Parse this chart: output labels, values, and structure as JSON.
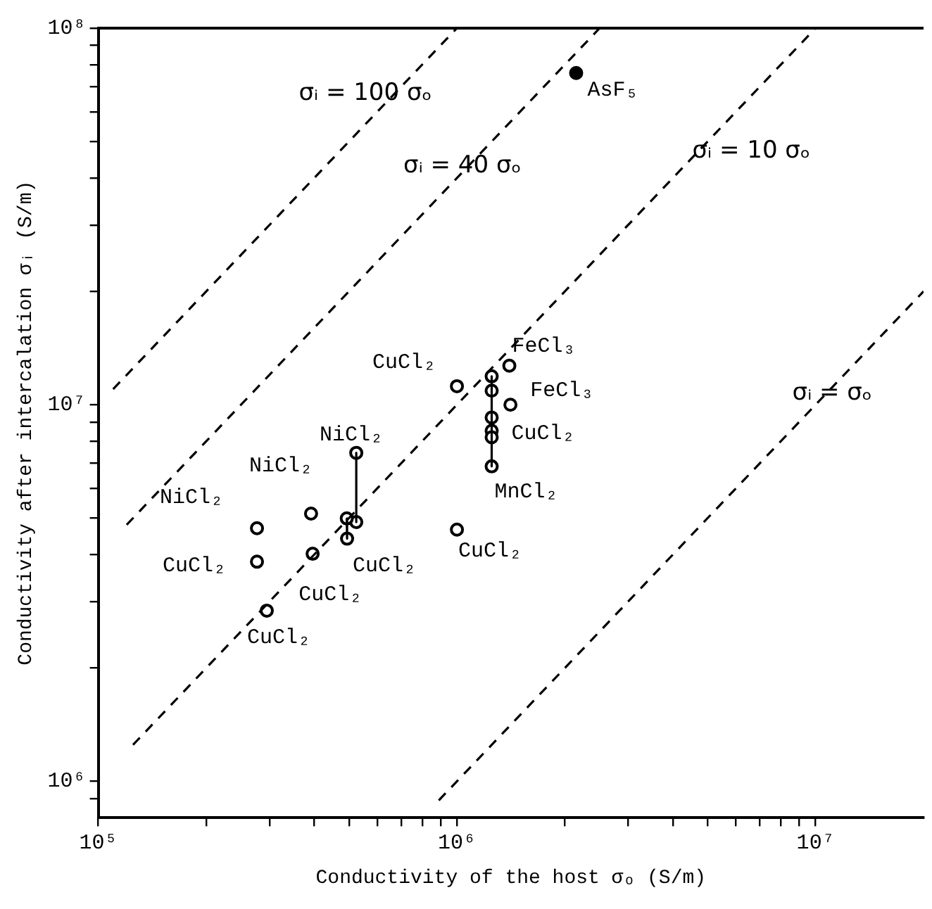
{
  "chart_data": {
    "type": "scatter",
    "xlabel": "Conductivity of the host σₒ (S/m)",
    "ylabel": "Conductivity after intercalation σᵢ (S/m)",
    "log": "xy",
    "grid": false,
    "marker": "circle",
    "xlim": [
      100000,
      20000000
    ],
    "ylim": [
      800000,
      100000000
    ],
    "xticks": [
      {
        "value": 100000,
        "label": "10⁵"
      },
      {
        "value": 200000,
        "label": null
      },
      {
        "value": 300000,
        "label": null
      },
      {
        "value": 400000,
        "label": null
      },
      {
        "value": 500000,
        "label": null
      },
      {
        "value": 600000,
        "label": null
      },
      {
        "value": 700000,
        "label": null
      },
      {
        "value": 800000,
        "label": null
      },
      {
        "value": 900000,
        "label": null
      },
      {
        "value": 1000000,
        "label": "10⁶"
      },
      {
        "value": 2000000,
        "label": null
      },
      {
        "value": 3000000,
        "label": null
      },
      {
        "value": 4000000,
        "label": null
      },
      {
        "value": 5000000,
        "label": null
      },
      {
        "value": 6000000,
        "label": null
      },
      {
        "value": 7000000,
        "label": null
      },
      {
        "value": 8000000,
        "label": null
      },
      {
        "value": 9000000,
        "label": null
      },
      {
        "value": 10000000,
        "label": "10⁷"
      }
    ],
    "yticks": [
      {
        "value": 900000,
        "label": null
      },
      {
        "value": 1000000,
        "label": "10⁶"
      },
      {
        "value": 2000000,
        "label": null
      },
      {
        "value": 3000000,
        "label": null
      },
      {
        "value": 4000000,
        "label": null
      },
      {
        "value": 5000000,
        "label": null
      },
      {
        "value": 6000000,
        "label": null
      },
      {
        "value": 7000000,
        "label": null
      },
      {
        "value": 8000000,
        "label": null
      },
      {
        "value": 9000000,
        "label": null
      },
      {
        "value": 10000000,
        "label": "10⁷"
      },
      {
        "value": 20000000,
        "label": null
      },
      {
        "value": 30000000,
        "label": null
      },
      {
        "value": 40000000,
        "label": null
      },
      {
        "value": 50000000,
        "label": null
      },
      {
        "value": 60000000,
        "label": null
      },
      {
        "value": 70000000,
        "label": null
      },
      {
        "value": 80000000,
        "label": null
      },
      {
        "value": 90000000,
        "label": null
      },
      {
        "value": 100000000,
        "label": "10⁸"
      }
    ],
    "series": [
      {
        "type": "line",
        "line_style": "dashed",
        "marker": "none",
        "color": "#000000",
        "x": [
          110000,
          1000000
        ],
        "values": [
          11000000,
          100000000
        ]
      },
      {
        "type": "line",
        "line_style": "dashed",
        "marker": "none",
        "color": "#000000",
        "x": [
          120000,
          2500000
        ],
        "values": [
          4800000,
          100000000
        ]
      },
      {
        "type": "line",
        "line_style": "dashed",
        "marker": "none",
        "color": "#000000",
        "x": [
          125000,
          10000000
        ],
        "values": [
          1250000,
          100000000
        ]
      },
      {
        "type": "line",
        "line_style": "dashed",
        "marker": "none",
        "color": "#000000",
        "x": [
          890000,
          20000000
        ],
        "values": [
          890000,
          20000000
        ]
      },
      {
        "type": "line",
        "line_style": "solid",
        "marker": "none",
        "color": "#000000",
        "x": [
          524000,
          524000
        ],
        "values": [
          7450000,
          4880000
        ]
      },
      {
        "type": "line",
        "line_style": "solid",
        "marker": "none",
        "color": "#000000",
        "x": [
          493000,
          494000
        ],
        "values": [
          4990000,
          4410000
        ]
      },
      {
        "type": "line",
        "line_style": "solid",
        "marker": "none",
        "color": "#000000",
        "x": [
          1250000,
          1250000
        ],
        "values": [
          11900000,
          6860000
        ]
      },
      {
        "color": "#ffffff",
        "x": [
          524000,
          524000,
          493000,
          494000,
          392000,
          396000,
          277000,
          277000,
          295000,
          1000000,
          1000000,
          1250000,
          1250000,
          1400000,
          1410000,
          1250000,
          1250000,
          1250000,
          1250000
        ],
        "values": [
          7450000,
          4880000,
          4990000,
          4410000,
          5140000,
          4020000,
          4700000,
          3830000,
          2840000,
          4660000,
          11200000,
          11900000,
          10900000,
          12700000,
          10000000,
          9250000,
          8530000,
          8200000,
          6860000
        ]
      },
      {
        "color": "#000000",
        "x": [
          2150000
        ],
        "values": [
          76000000
        ]
      }
    ],
    "annotations": [
      {
        "text": "σᵢ = 100 σₒ",
        "x": 670000,
        "y": 67000000
      },
      {
        "text": "σᵢ = 40 σₒ",
        "x": 1075000,
        "y": 43000000
      },
      {
        "text": "σᵢ = 10 σₒ",
        "x": 4700000,
        "y": 47000000
      },
      {
        "text": "σᵢ = σₒ",
        "x": 10700000,
        "y": 10700000
      },
      {
        "text": "AsF₅",
        "x": 2150000,
        "y": 76000000
      },
      {
        "text": "CuCl₂",
        "x": 1000000,
        "y": 11200000
      },
      {
        "text": "NiCl₂",
        "x": 524000,
        "y": 7450000
      },
      {
        "text": "NiCl₂",
        "x": 392000,
        "y": 5140000
      },
      {
        "text": "NiCl₂",
        "x": 277000,
        "y": 4700000
      },
      {
        "text": "CuCl₂",
        "x": 277000,
        "y": 3830000
      },
      {
        "text": "CuCl₂",
        "x": 494000,
        "y": 4410000
      },
      {
        "text": "CuCl₂",
        "x": 396000,
        "y": 4020000
      },
      {
        "text": "CuCl₂",
        "x": 295000,
        "y": 2840000
      },
      {
        "text": "CuCl₂",
        "x": 1000000,
        "y": 4660000
      },
      {
        "text": "FeCl₃",
        "x": 1400000,
        "y": 12700000
      },
      {
        "text": "FeCl₃",
        "x": 1410000,
        "y": 10000000
      },
      {
        "text": "CuCl₂",
        "x": 1250000,
        "y": 8530000
      },
      {
        "text": "MnCl₂",
        "x": 1250000,
        "y": 6860000
      }
    ]
  }
}
